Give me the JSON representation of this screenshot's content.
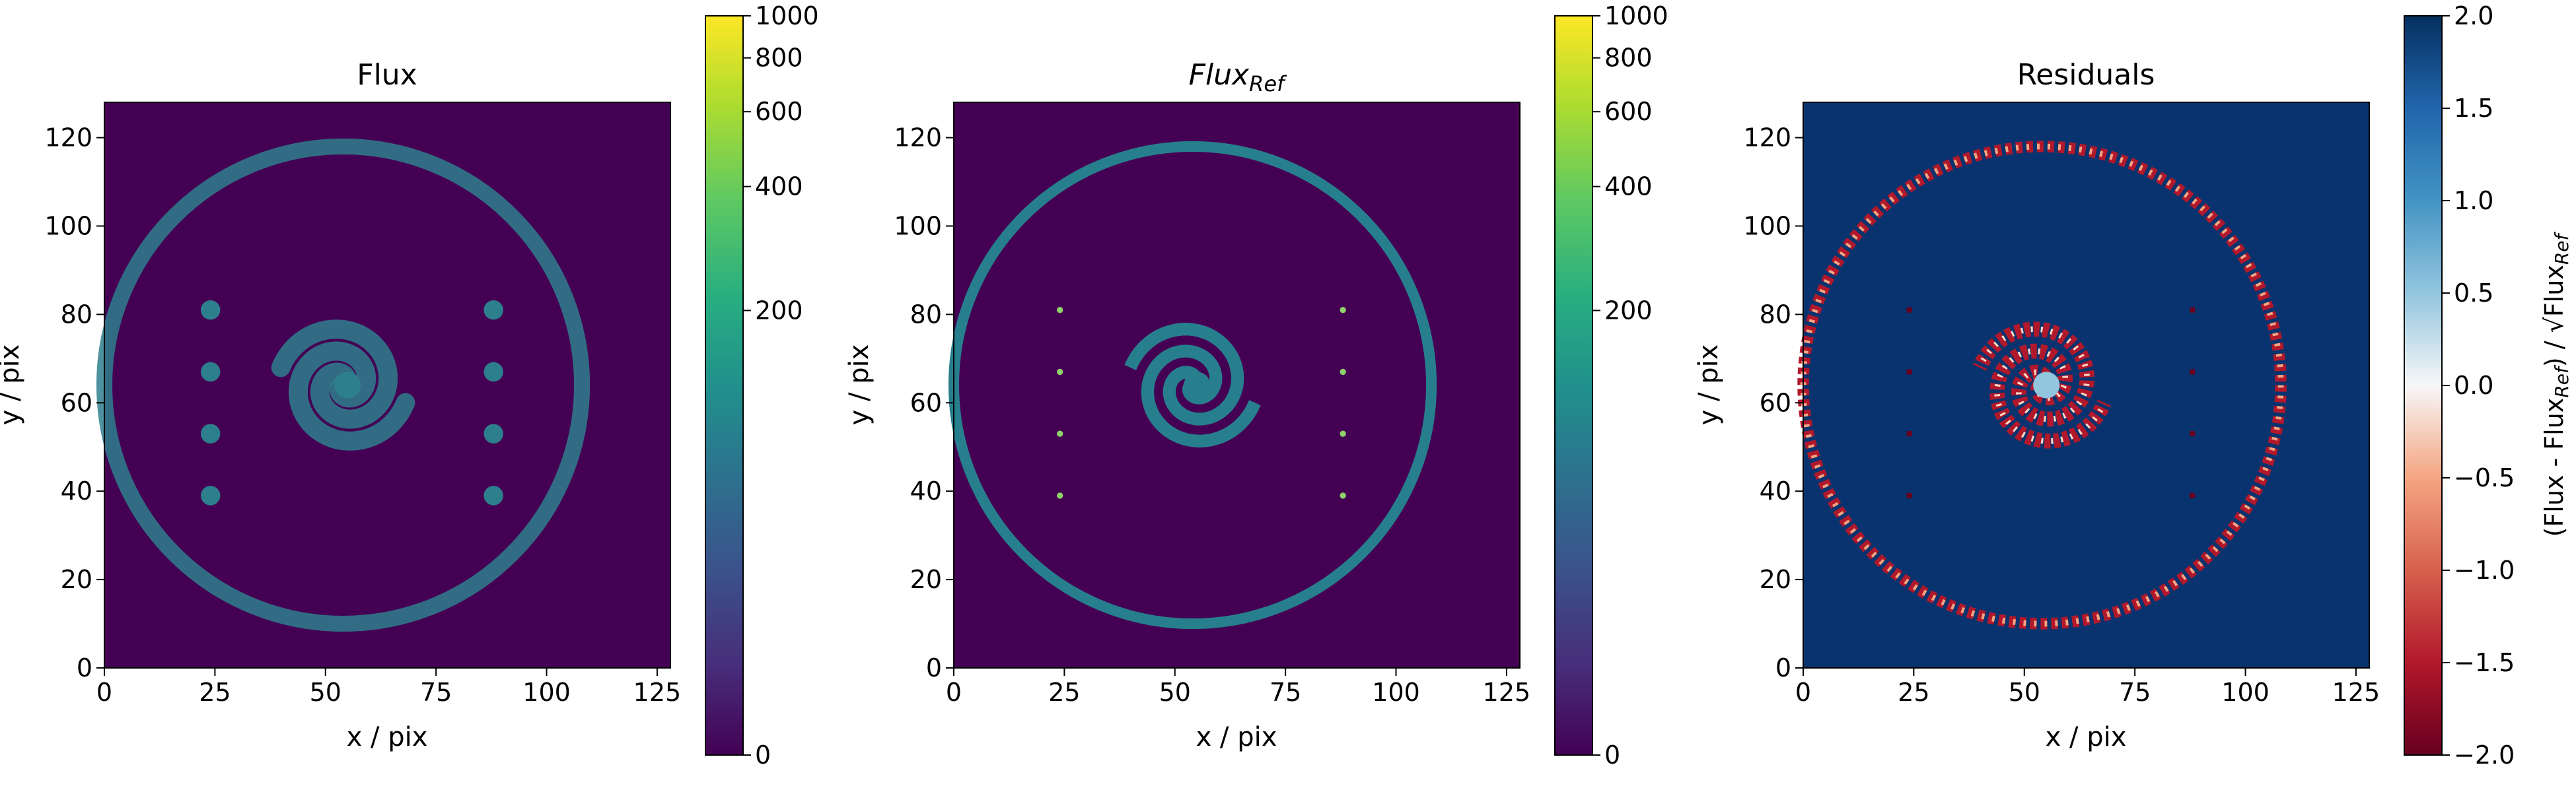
{
  "chart_data": [
    {
      "type": "heatmap",
      "title": "Flux",
      "xlabel": "x / pix",
      "ylabel": "y / pix",
      "xlim": [
        0,
        128
      ],
      "ylim": [
        0,
        128
      ],
      "xticks": [
        0,
        25,
        50,
        75,
        100,
        125
      ],
      "yticks": [
        0,
        20,
        40,
        60,
        80,
        100,
        120
      ],
      "colormap": "viridis",
      "colorbar": {
        "scale": "symlog",
        "range": [
          0,
          1000
        ],
        "ticks": [
          "0",
          "200",
          "400",
          "600",
          "800",
          "1000"
        ]
      },
      "structures": {
        "ring": {
          "center": [
            54,
            64
          ],
          "radius": 54
        },
        "spiral": {
          "center": [
            54,
            64
          ],
          "arms": 2
        },
        "point_sources": [
          [
            24,
            81
          ],
          [
            24,
            67
          ],
          [
            24,
            53
          ],
          [
            24,
            39
          ],
          [
            88,
            81
          ],
          [
            88,
            67
          ],
          [
            88,
            53
          ],
          [
            88,
            39
          ]
        ]
      },
      "background_level": 0,
      "structure_level": 120
    },
    {
      "type": "heatmap",
      "title_main": "Flux",
      "title_sub": "Ref",
      "xlabel": "x / pix",
      "ylabel": "y / pix",
      "xlim": [
        0,
        128
      ],
      "ylim": [
        0,
        128
      ],
      "xticks": [
        0,
        25,
        50,
        75,
        100,
        125
      ],
      "yticks": [
        0,
        20,
        40,
        60,
        80,
        100,
        120
      ],
      "colormap": "viridis",
      "colorbar": {
        "scale": "symlog",
        "range": [
          0,
          1000
        ],
        "ticks": [
          "0",
          "200",
          "400",
          "600",
          "800",
          "1000"
        ]
      },
      "structures": {
        "ring": {
          "center": [
            54,
            64
          ],
          "radius": 54
        },
        "spiral": {
          "center": [
            54,
            64
          ],
          "arms": 2
        },
        "point_sources": [
          [
            24,
            81
          ],
          [
            24,
            67
          ],
          [
            24,
            53
          ],
          [
            24,
            39
          ],
          [
            88,
            81
          ],
          [
            88,
            67
          ],
          [
            88,
            53
          ],
          [
            88,
            39
          ]
        ]
      },
      "background_level": 0,
      "structure_level": 120
    },
    {
      "type": "heatmap",
      "title": "Residuals",
      "xlabel": "x / pix",
      "ylabel": "y / pix",
      "xlim": [
        0,
        128
      ],
      "ylim": [
        0,
        128
      ],
      "xticks": [
        0,
        25,
        50,
        75,
        100,
        125
      ],
      "yticks": [
        0,
        20,
        40,
        60,
        80,
        100,
        120
      ],
      "colormap": "RdBu",
      "colorbar": {
        "scale": "linear",
        "range": [
          -2.0,
          2.0
        ],
        "ticks": [
          "2.0",
          "1.5",
          "1.0",
          "0.5",
          "0.0",
          "−0.5",
          "−1.0",
          "−1.5",
          "−2.0"
        ],
        "label_parts": [
          "(Flux - Flux",
          "Ref",
          ") / √Flux",
          "Ref"
        ]
      },
      "background_level": 2.0
    }
  ],
  "colors": {
    "viridis_low": "#440154",
    "viridis_mid": "#21918c",
    "viridis_high": "#fde725",
    "rdbu_low": "#67001f",
    "rdbu_mid": "#f7f7f7",
    "rdbu_high": "#053061"
  }
}
